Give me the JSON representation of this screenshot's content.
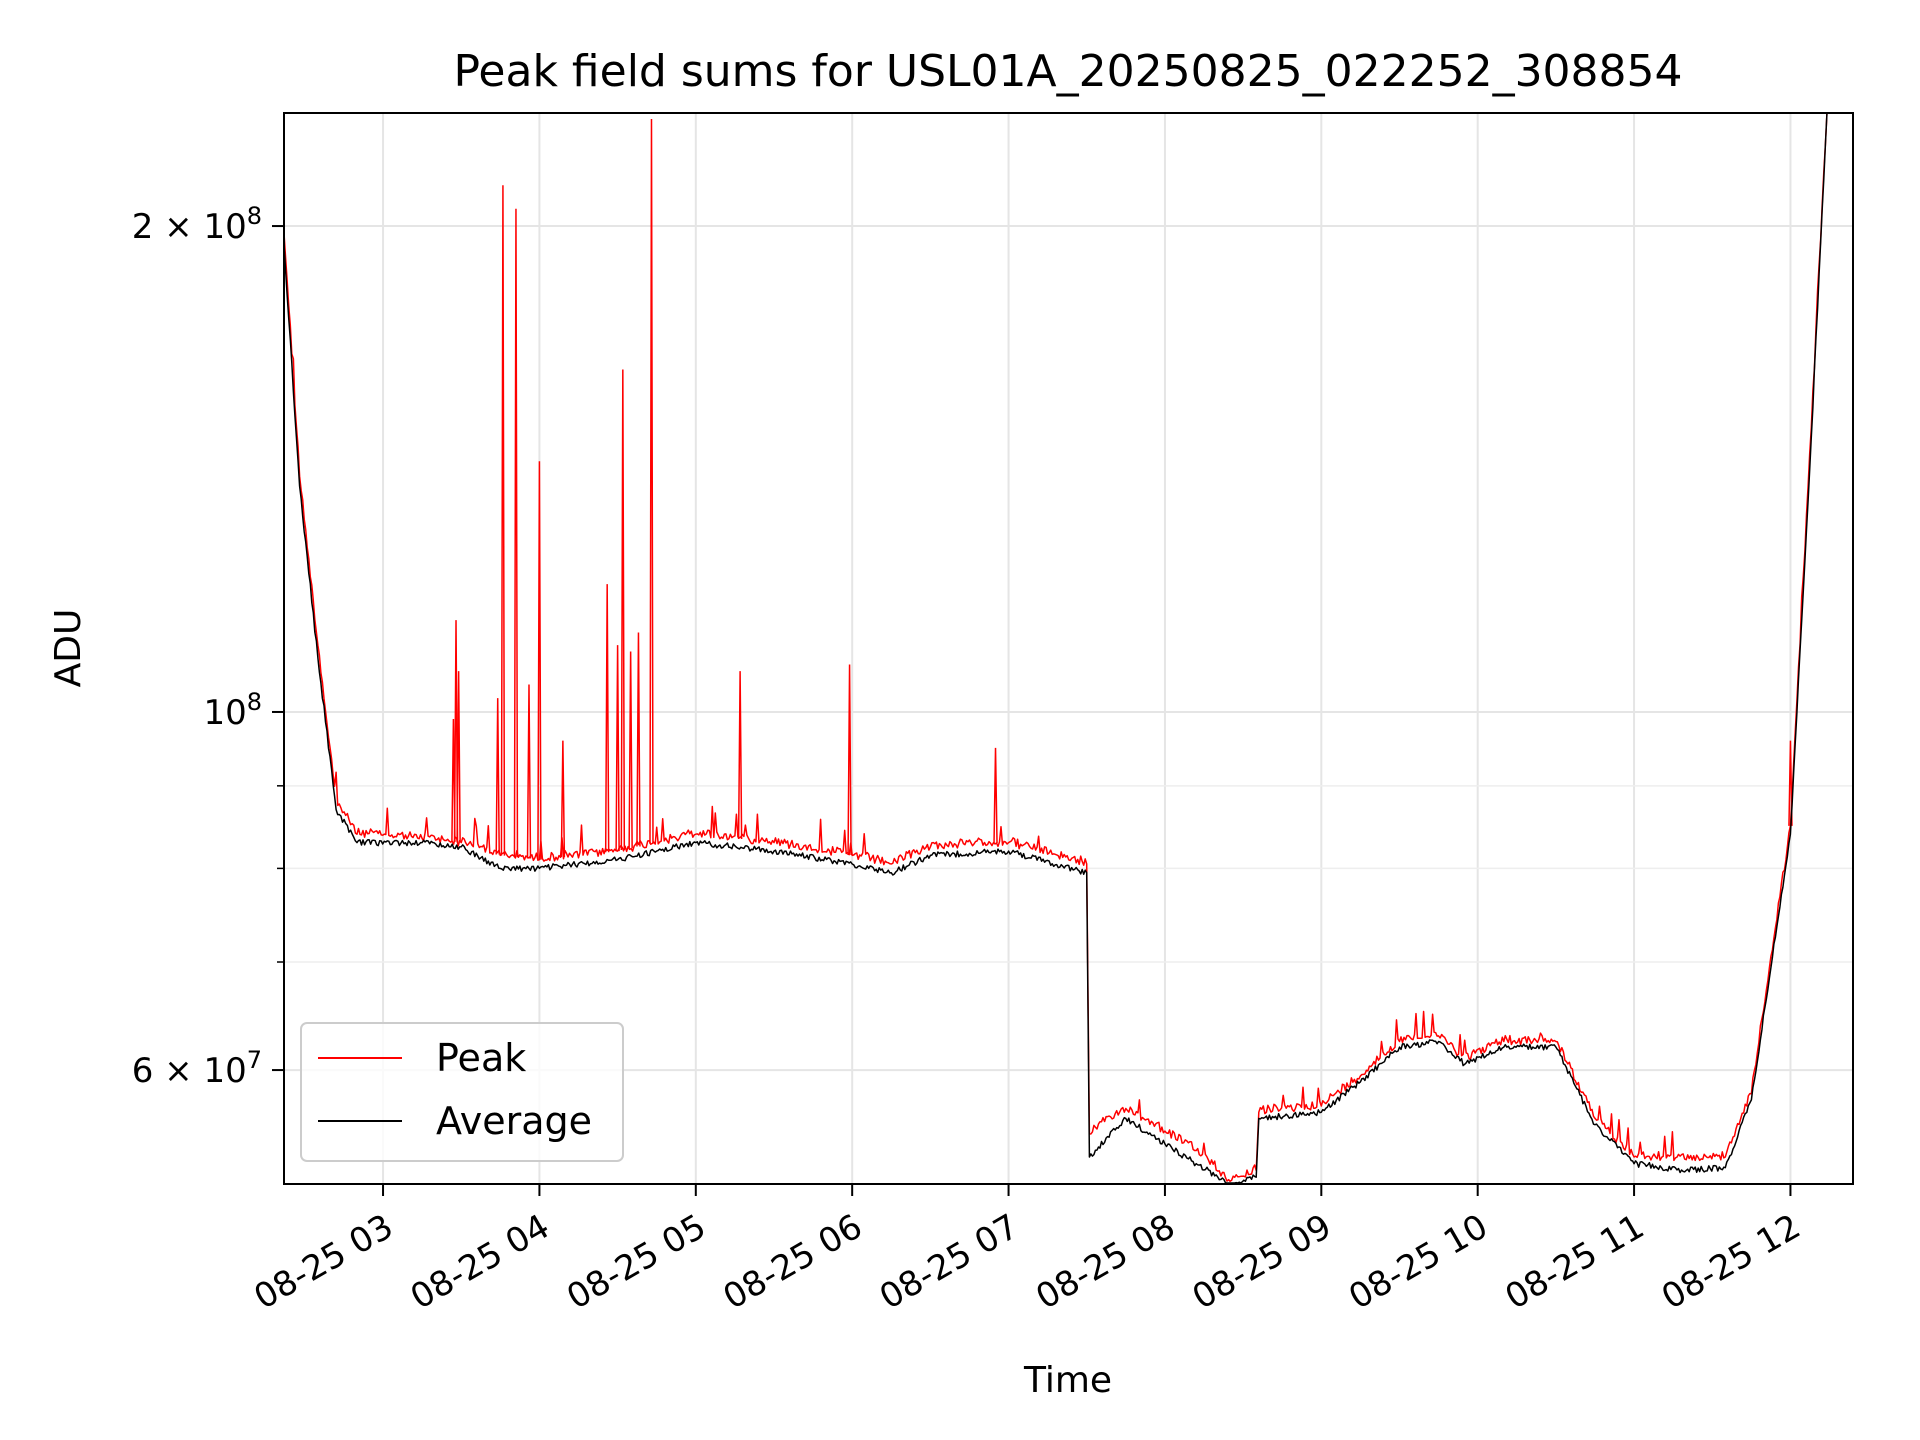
{
  "chart_data": {
    "type": "line",
    "title": "Peak field sums for USL01A_20250825_022252_308854",
    "xlabel": "Time",
    "ylabel": "ADU",
    "y_scale": "log",
    "grid": true,
    "legend_position": "lower-left",
    "xlim": [
      "2025-08-25T02:22",
      "2025-08-25T12:24"
    ],
    "ylim": [
      51000000,
      235000000
    ],
    "x_tick_labels": [
      "08-25 03",
      "08-25 04",
      "08-25 05",
      "08-25 06",
      "08-25 07",
      "08-25 08",
      "08-25 09",
      "08-25 10",
      "08-25 11",
      "08-25 12"
    ],
    "x_tick_values": [
      "2025-08-25T03:00",
      "2025-08-25T04:00",
      "2025-08-25T05:00",
      "2025-08-25T06:00",
      "2025-08-25T07:00",
      "2025-08-25T08:00",
      "2025-08-25T09:00",
      "2025-08-25T10:00",
      "2025-08-25T11:00",
      "2025-08-25T12:00"
    ],
    "y_major_ticks": [
      {
        "value": 60000000,
        "mantissa": "6",
        "exponent": "7"
      },
      {
        "value": 100000000,
        "mantissa": "",
        "exponent": "8"
      },
      {
        "value": 200000000,
        "mantissa": "2",
        "exponent": "8"
      }
    ],
    "y_minor_ticks": [
      70000000,
      80000000,
      90000000
    ],
    "series": [
      {
        "name": "Peak",
        "color": "#ff0000",
        "baseline": [
          [
            "2025-08-25T02:22",
            198000000
          ],
          [
            "2025-08-25T02:28",
            140000000
          ],
          [
            "2025-08-25T02:35",
            110000000
          ],
          [
            "2025-08-25T02:42",
            88000000
          ],
          [
            "2025-08-25T02:50",
            84000000
          ],
          [
            "2025-08-25T03:15",
            83500000
          ],
          [
            "2025-08-25T03:30",
            83000000
          ],
          [
            "2025-08-25T03:45",
            81500000
          ],
          [
            "2025-08-25T04:00",
            81000000
          ],
          [
            "2025-08-25T04:30",
            82000000
          ],
          [
            "2025-08-25T04:45",
            83000000
          ],
          [
            "2025-08-25T05:00",
            84000000
          ],
          [
            "2025-08-25T05:30",
            83000000
          ],
          [
            "2025-08-25T06:00",
            81500000
          ],
          [
            "2025-08-25T06:15",
            80500000
          ],
          [
            "2025-08-25T06:30",
            82500000
          ],
          [
            "2025-08-25T07:00",
            83000000
          ],
          [
            "2025-08-25T07:30",
            80500000
          ],
          [
            "2025-08-25T07:31",
            54800000
          ],
          [
            "2025-08-25T07:45",
            56800000
          ],
          [
            "2025-08-25T08:00",
            55000000
          ],
          [
            "2025-08-25T08:12",
            53500000
          ],
          [
            "2025-08-25T08:25",
            51200000
          ],
          [
            "2025-08-25T08:35",
            52000000
          ],
          [
            "2025-08-25T08:36",
            56500000
          ],
          [
            "2025-08-25T09:00",
            57000000
          ],
          [
            "2025-08-25T09:15",
            59500000
          ],
          [
            "2025-08-25T09:30",
            62500000
          ],
          [
            "2025-08-25T09:45",
            63000000
          ],
          [
            "2025-08-25T09:55",
            61000000
          ],
          [
            "2025-08-25T10:10",
            62500000
          ],
          [
            "2025-08-25T10:30",
            62500000
          ],
          [
            "2025-08-25T10:45",
            56000000
          ],
          [
            "2025-08-25T11:00",
            53000000
          ],
          [
            "2025-08-25T11:20",
            52800000
          ],
          [
            "2025-08-25T11:35",
            53000000
          ],
          [
            "2025-08-25T11:45",
            58000000
          ],
          [
            "2025-08-25T12:00",
            85000000
          ],
          [
            "2025-08-25T12:08",
            150000000
          ],
          [
            "2025-08-25T12:14",
            235000000
          ]
        ],
        "spikes": [
          [
            "2025-08-25T03:27",
            99000000
          ],
          [
            "2025-08-25T03:28",
            114000000
          ],
          [
            "2025-08-25T03:29",
            106000000
          ],
          [
            "2025-08-25T03:44",
            102000000
          ],
          [
            "2025-08-25T03:46",
            212000000
          ],
          [
            "2025-08-25T03:51",
            205000000
          ],
          [
            "2025-08-25T03:56",
            104000000
          ],
          [
            "2025-08-25T04:00",
            143000000
          ],
          [
            "2025-08-25T04:09",
            96000000
          ],
          [
            "2025-08-25T04:26",
            120000000
          ],
          [
            "2025-08-25T04:30",
            110000000
          ],
          [
            "2025-08-25T04:32",
            163000000
          ],
          [
            "2025-08-25T04:35",
            109000000
          ],
          [
            "2025-08-25T04:38",
            112000000
          ],
          [
            "2025-08-25T04:43",
            233000000
          ],
          [
            "2025-08-25T05:17",
            106000000
          ],
          [
            "2025-08-25T05:59",
            107000000
          ],
          [
            "2025-08-25T06:55",
            95000000
          ],
          [
            "2025-08-25T12:00",
            96000000
          ]
        ]
      },
      {
        "name": "Average",
        "color": "#000000",
        "baseline": [
          [
            "2025-08-25T02:22",
            195000000
          ],
          [
            "2025-08-25T02:28",
            138000000
          ],
          [
            "2025-08-25T02:35",
            108000000
          ],
          [
            "2025-08-25T02:42",
            87000000
          ],
          [
            "2025-08-25T02:50",
            83000000
          ],
          [
            "2025-08-25T03:15",
            83000000
          ],
          [
            "2025-08-25T03:30",
            82500000
          ],
          [
            "2025-08-25T03:45",
            80000000
          ],
          [
            "2025-08-25T04:00",
            80000000
          ],
          [
            "2025-08-25T04:30",
            81000000
          ],
          [
            "2025-08-25T04:45",
            82000000
          ],
          [
            "2025-08-25T05:00",
            83000000
          ],
          [
            "2025-08-25T05:30",
            82000000
          ],
          [
            "2025-08-25T06:00",
            80500000
          ],
          [
            "2025-08-25T06:15",
            79500000
          ],
          [
            "2025-08-25T06:30",
            81500000
          ],
          [
            "2025-08-25T07:00",
            82000000
          ],
          [
            "2025-08-25T07:30",
            79500000
          ],
          [
            "2025-08-25T07:31",
            53000000
          ],
          [
            "2025-08-25T07:45",
            56000000
          ],
          [
            "2025-08-25T08:00",
            54000000
          ],
          [
            "2025-08-25T08:12",
            52500000
          ],
          [
            "2025-08-25T08:25",
            51000000
          ],
          [
            "2025-08-25T08:35",
            51500000
          ],
          [
            "2025-08-25T08:36",
            56000000
          ],
          [
            "2025-08-25T09:00",
            56500000
          ],
          [
            "2025-08-25T09:15",
            59000000
          ],
          [
            "2025-08-25T09:30",
            62000000
          ],
          [
            "2025-08-25T09:45",
            62500000
          ],
          [
            "2025-08-25T09:55",
            60500000
          ],
          [
            "2025-08-25T10:10",
            62000000
          ],
          [
            "2025-08-25T10:30",
            62000000
          ],
          [
            "2025-08-25T10:45",
            55500000
          ],
          [
            "2025-08-25T11:00",
            52500000
          ],
          [
            "2025-08-25T11:20",
            52000000
          ],
          [
            "2025-08-25T11:35",
            52200000
          ],
          [
            "2025-08-25T11:45",
            57500000
          ],
          [
            "2025-08-25T12:00",
            84000000
          ],
          [
            "2025-08-25T12:08",
            148000000
          ],
          [
            "2025-08-25T12:14",
            235000000
          ]
        ],
        "spikes": []
      }
    ]
  }
}
